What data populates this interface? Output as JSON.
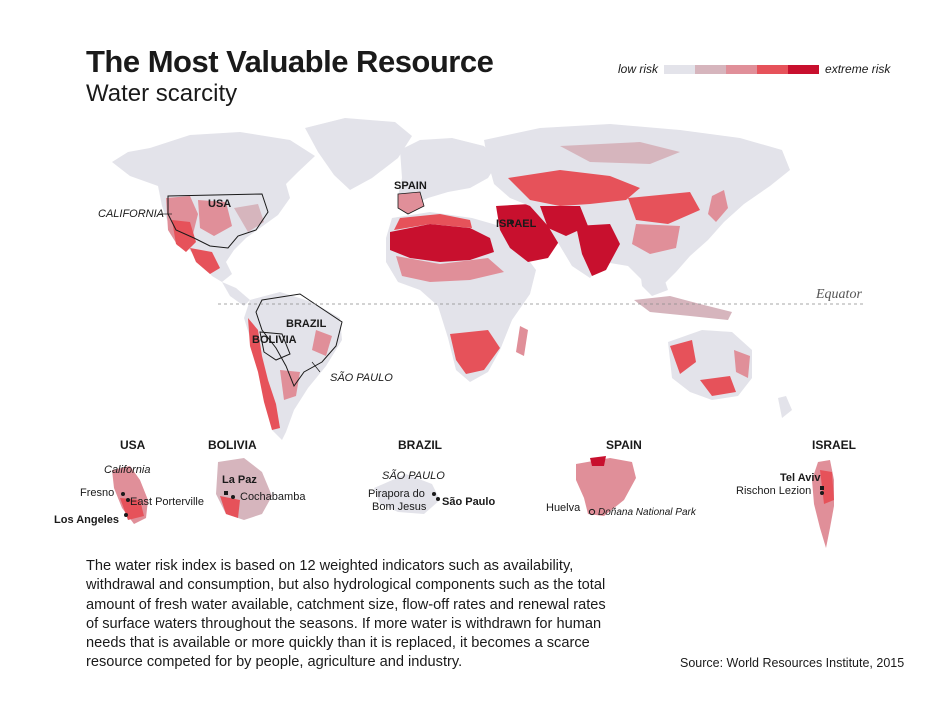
{
  "title": "The Most Valuable Resource",
  "subtitle": "Water scarcity",
  "legend": {
    "low_label": "low risk",
    "high_label": "extreme risk",
    "colors": [
      "#e3e3ea",
      "#d6b5bd",
      "#e08f99",
      "#e6525a",
      "#c8102e"
    ]
  },
  "map_labels": {
    "california": "CALIFORNIA",
    "usa": "USA",
    "spain": "SPAIN",
    "israel": "ISRAEL",
    "brazil": "BRAZIL",
    "bolivia": "BOLIVIA",
    "sao_paulo": "SÃO PAULO",
    "equator": "Equator"
  },
  "insets": {
    "usa": {
      "title": "USA",
      "region": "California",
      "places": [
        "Fresno",
        "East Porterville",
        "Los Angeles"
      ]
    },
    "bolivia": {
      "title": "BOLIVIA",
      "places": [
        "La Paz",
        "Cochabamba"
      ]
    },
    "brazil": {
      "title": "BRAZIL",
      "region": "SÃO PAULO",
      "places": [
        "Pirapora do",
        "Bom Jesus",
        "São Paulo"
      ]
    },
    "spain": {
      "title": "SPAIN",
      "places": [
        "Huelva",
        "Doñana National Park"
      ]
    },
    "israel": {
      "title": "ISRAEL",
      "places": [
        "Tel Aviv",
        "Rischon Lezion"
      ]
    }
  },
  "body_text": "The water risk index is based on 12 weighted indicators such as availability, withdrawal and consumption, but also hydrological components such as the total amount of fresh water available, catchment size, flow-off rates and renewal rates of surface waters throughout the seasons. If more water is withdrawn for human needs that is available or more quickly than it is replaced, it becomes a scarce resource competed for by people, agriculture and industry.",
  "source": "Source: World Resources Institute, 2015"
}
